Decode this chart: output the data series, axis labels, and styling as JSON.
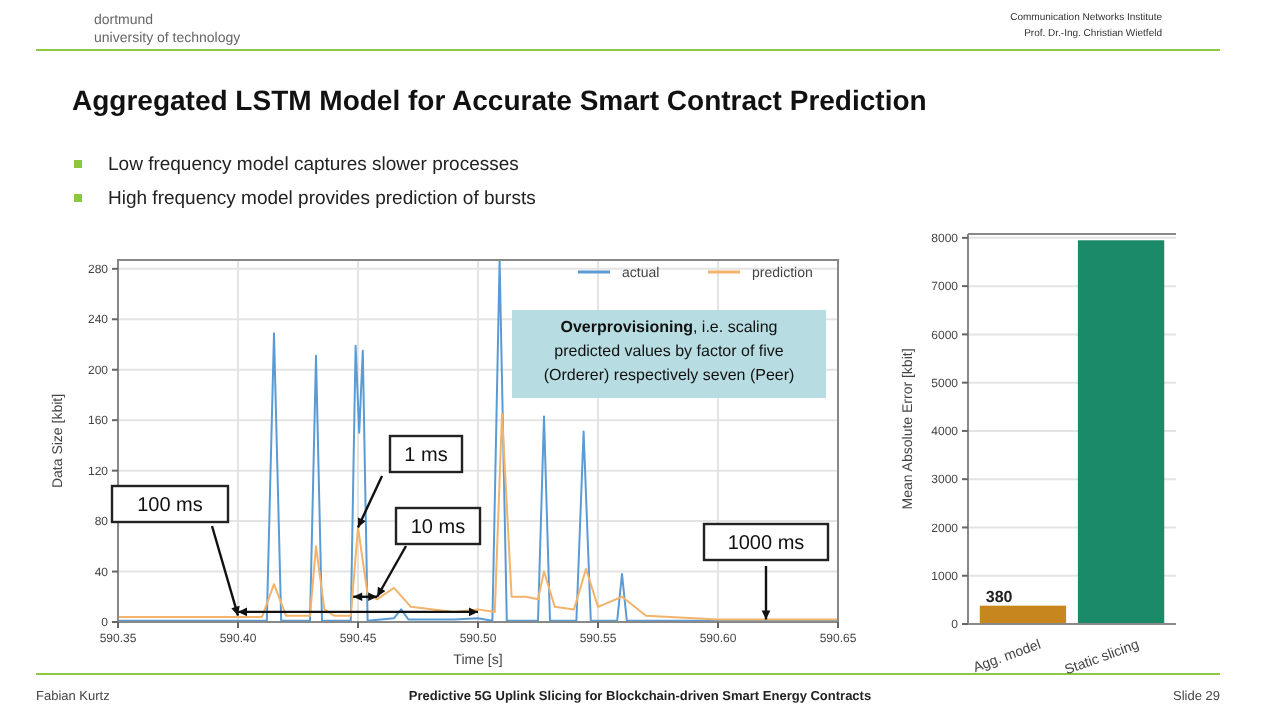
{
  "chart_data": [
    {
      "type": "line",
      "title": "Aggregated LSTM Model for Accurate Smart Contract Prediction",
      "xlabel": "Time [s]",
      "ylabel": "Data Size [kbit]",
      "xlim": [
        590.35,
        590.65
      ],
      "xticks": [
        {
          "value": 590.35,
          "label": "590.35"
        },
        {
          "value": 590.4,
          "label": "590.40"
        },
        {
          "value": 590.45,
          "label": "590.45"
        },
        {
          "value": 590.5,
          "label": "590.50"
        },
        {
          "value": 590.55,
          "label": "590.55"
        },
        {
          "value": 590.6,
          "label": "590.60"
        },
        {
          "value": 590.65,
          "label": "590.65"
        }
      ],
      "ylim": [
        0,
        287
      ],
      "yticks": [
        0,
        40,
        80,
        120,
        160,
        200,
        240,
        280
      ],
      "grid": true,
      "legend": "top right",
      "series": [
        {
          "name": "actual",
          "color": "#5b9bd5",
          "x": [
            590.35,
            590.4,
            590.412,
            590.415,
            590.418,
            590.43,
            590.4325,
            590.435,
            590.447,
            590.449,
            590.4505,
            590.452,
            590.454,
            590.465,
            590.468,
            590.471,
            590.49,
            590.5,
            590.506,
            590.509,
            590.512,
            590.525,
            590.5275,
            590.53,
            590.541,
            590.544,
            590.547,
            590.558,
            590.56,
            590.562,
            590.65
          ],
          "values": [
            1,
            1,
            1,
            229,
            1,
            1,
            211,
            1,
            1,
            219,
            150,
            215,
            1,
            3,
            10,
            2,
            2,
            3,
            1,
            287,
            1,
            1,
            163,
            1,
            1,
            151,
            1,
            1,
            38,
            1,
            1
          ]
        },
        {
          "name": "prediction",
          "color": "#f2b36b",
          "x": [
            590.35,
            590.41,
            590.415,
            590.42,
            590.43,
            590.4325,
            590.436,
            590.44,
            590.447,
            590.45,
            590.454,
            590.458,
            590.465,
            590.472,
            590.49,
            590.5,
            590.507,
            590.51,
            590.514,
            590.52,
            590.525,
            590.5275,
            590.532,
            590.54,
            590.545,
            590.55,
            590.56,
            590.57,
            590.6,
            590.65
          ],
          "values": [
            4,
            4,
            30,
            5,
            5,
            60,
            10,
            5,
            5,
            75,
            22,
            18,
            27,
            12,
            8,
            10,
            8,
            165,
            20,
            20,
            18,
            40,
            12,
            10,
            42,
            12,
            20,
            5,
            2,
            2
          ]
        }
      ],
      "annotations": [
        "dortmund",
        "university of technology",
        "Communication Networks Institute",
        "Prof. Dr.-Ing. Christian Wietfeld",
        "Low frequency model captures slower processes",
        "High frequency model provides prediction of bursts",
        "Overprovisioning, i.e. scaling predicted values by factor of five (Orderer) respectively seven (Peer)",
        {
          "text": "100 ms",
          "x": 590.4,
          "y": 5
        },
        {
          "text": "1 ms",
          "x": 590.45,
          "y": 75
        },
        {
          "text": "10 ms",
          "x": 590.458,
          "y": 20
        },
        {
          "text": "1000 ms",
          "x": 590.62,
          "y": 2
        },
        "Fabian Kurtz",
        "Predictive 5G Uplink Slicing for Blockchain-driven Smart Energy Contracts",
        "Slide 29"
      ]
    },
    {
      "type": "bar",
      "ylabel": "Mean Absolute Error [kbit]",
      "categories": [
        "Agg. model",
        "Static slicing"
      ],
      "values": [
        380,
        7950
      ],
      "colors": [
        "#c8861e",
        "#1a8a68"
      ],
      "value_labels": [
        "380",
        null
      ],
      "ylim": [
        0,
        8080
      ],
      "yticks": [
        0,
        1000,
        2000,
        3000,
        4000,
        5000,
        6000,
        7000,
        8000
      ],
      "grid": "y"
    }
  ]
}
